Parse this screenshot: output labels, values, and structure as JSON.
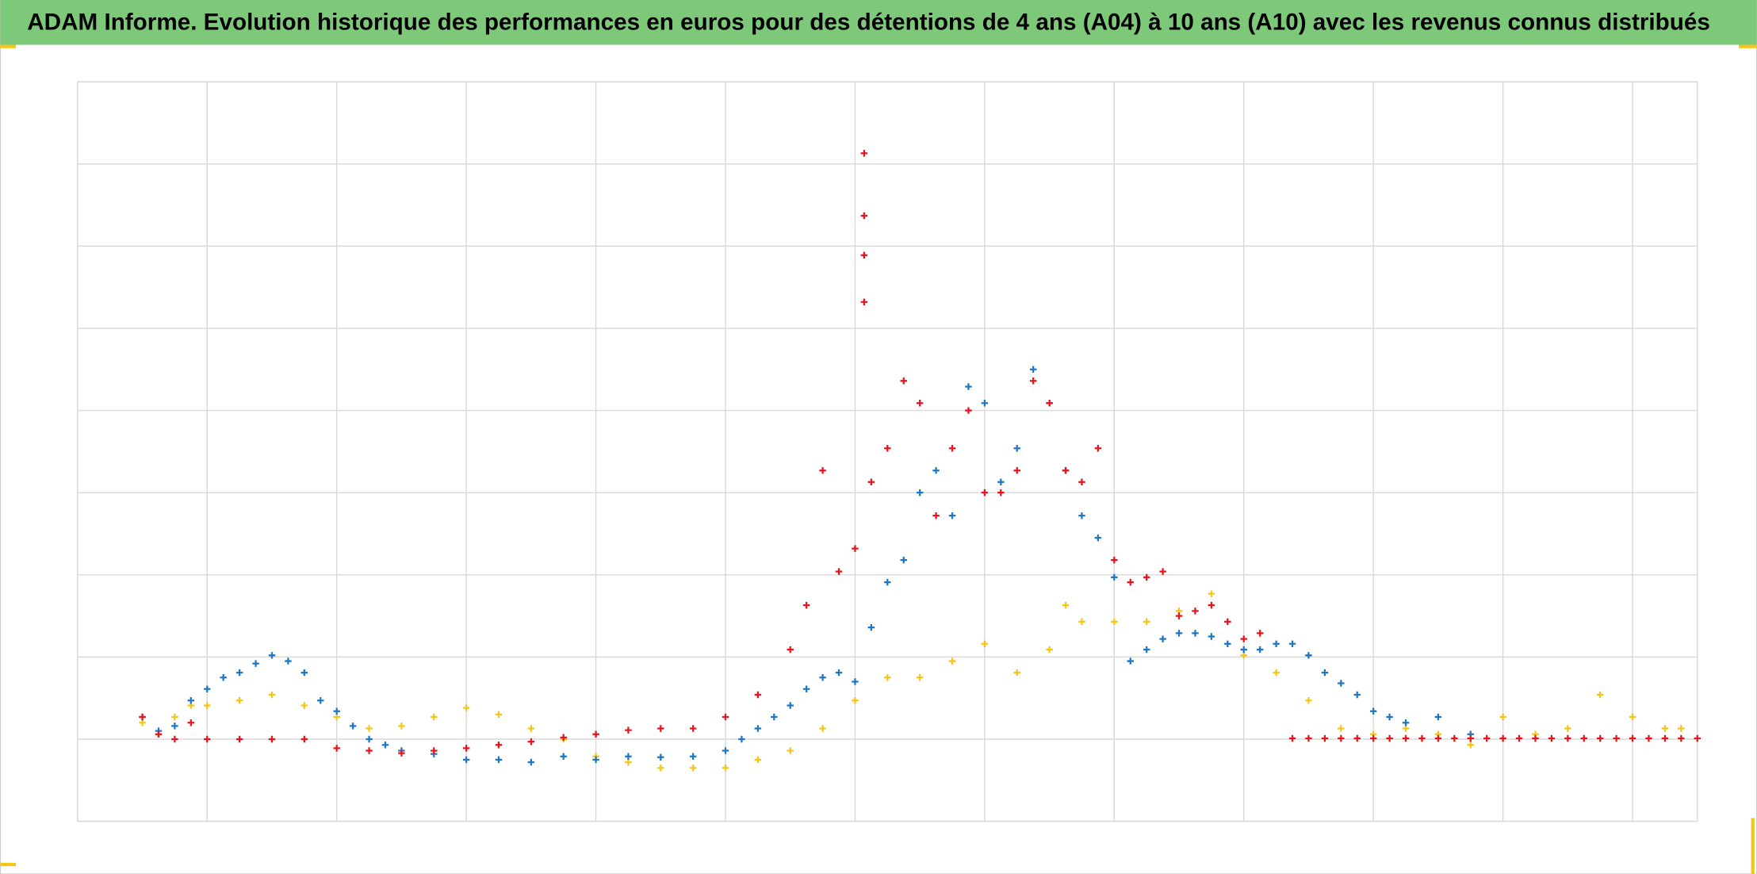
{
  "chart_data": {
    "type": "scatter",
    "title": "ADAM Informe. Evolution historique des performances en euros pour des détentions de 4 ans (A04) à 10 ans (A10) avec les revenus connus distribués",
    "xlim": [
      0,
      12.5
    ],
    "xticks": [
      0,
      1,
      2,
      3,
      4,
      5,
      6,
      7,
      8,
      9,
      10,
      11,
      12
    ],
    "ylim": [
      0,
      9
    ],
    "yticks": [
      0,
      1,
      2,
      3,
      4,
      5,
      6,
      7,
      8,
      9
    ],
    "grid": true,
    "series": [
      {
        "color": "#f5c518",
        "x": [
          0.5,
          0.625,
          0.75,
          0.875,
          1.0,
          1.25,
          1.5,
          1.75,
          2.0,
          2.25,
          2.5,
          2.75,
          3.0,
          3.25,
          3.5,
          3.75,
          4.0,
          4.25,
          4.5,
          4.75,
          5.0,
          5.25,
          5.5,
          5.75,
          6.0,
          6.25,
          6.5,
          6.75,
          7.0,
          7.25,
          7.5,
          7.625,
          7.75,
          8.0,
          8.25,
          8.5,
          8.75,
          9.0,
          9.25,
          9.5,
          9.75,
          10.0,
          10.25,
          10.5,
          10.75,
          11.0,
          11.25,
          11.5,
          11.75,
          12.0,
          12.25,
          12.375
        ],
        "values": [
          1.2,
          1.06,
          1.27,
          1.41,
          1.41,
          1.47,
          1.54,
          1.41,
          1.27,
          1.13,
          1.16,
          1.27,
          1.38,
          1.3,
          1.13,
          1.0,
          0.79,
          0.72,
          0.65,
          0.65,
          0.65,
          0.75,
          0.86,
          1.13,
          1.47,
          1.75,
          1.75,
          1.95,
          2.16,
          1.81,
          2.09,
          2.63,
          2.43,
          2.43,
          2.43,
          2.56,
          2.77,
          2.02,
          1.81,
          1.47,
          1.13,
          1.06,
          1.13,
          1.06,
          0.93,
          1.27,
          1.06,
          1.13,
          1.54,
          1.27,
          1.13,
          1.13
        ]
      },
      {
        "color": "#1f77c4",
        "x": [
          0.5,
          0.625,
          0.75,
          0.875,
          1.0,
          1.125,
          1.25,
          1.375,
          1.5,
          1.625,
          1.75,
          1.875,
          2.0,
          2.125,
          2.25,
          2.375,
          2.5,
          2.75,
          3.0,
          3.25,
          3.5,
          3.75,
          4.0,
          4.25,
          4.5,
          4.75,
          5.0,
          5.125,
          5.25,
          5.375,
          5.5,
          5.625,
          5.75,
          5.875,
          6.0,
          6.125,
          6.25,
          6.375,
          6.5,
          6.625,
          6.75,
          6.875,
          7.0,
          7.125,
          7.25,
          7.375,
          7.5,
          7.625,
          7.75,
          7.875,
          8.0,
          8.125,
          8.25,
          8.375,
          8.5,
          8.625,
          8.75,
          8.875,
          9.0,
          9.125,
          9.25,
          9.375,
          9.5,
          9.625,
          9.75,
          9.875,
          10.0,
          10.125,
          10.25,
          10.5,
          10.75
        ],
        "values": [
          1.27,
          1.1,
          1.16,
          1.47,
          1.61,
          1.75,
          1.81,
          1.92,
          2.02,
          1.95,
          1.81,
          1.47,
          1.34,
          1.16,
          1.0,
          0.93,
          0.86,
          0.82,
          0.75,
          0.75,
          0.72,
          0.79,
          0.75,
          0.79,
          0.78,
          0.79,
          0.86,
          1.0,
          1.13,
          1.27,
          1.41,
          1.61,
          1.75,
          1.81,
          1.7,
          2.36,
          2.91,
          3.18,
          4.0,
          4.27,
          3.72,
          5.29,
          5.09,
          4.13,
          4.54,
          5.5,
          5.09,
          4.27,
          3.72,
          3.45,
          2.97,
          1.95,
          2.09,
          2.22,
          2.29,
          2.29,
          2.25,
          2.16,
          2.09,
          2.09,
          2.16,
          2.16,
          2.02,
          1.81,
          1.68,
          1.54,
          1.34,
          1.27,
          1.2,
          1.27,
          1.06
        ]
      },
      {
        "color": "#e8141c",
        "x": [
          0.5,
          0.625,
          0.75,
          0.875,
          1.0,
          1.25,
          1.5,
          1.75,
          2.0,
          2.25,
          2.5,
          2.75,
          3.0,
          3.25,
          3.5,
          3.75,
          4.0,
          4.25,
          4.5,
          4.75,
          5.0,
          5.25,
          5.5,
          5.625,
          5.75,
          5.875,
          6.0,
          6.07,
          6.07,
          6.07,
          6.07,
          6.125,
          6.25,
          6.375,
          6.5,
          6.625,
          6.75,
          6.875,
          7.0,
          7.125,
          7.25,
          7.375,
          7.5,
          7.625,
          7.75,
          7.875,
          8.0,
          8.125,
          8.25,
          8.375,
          8.5,
          8.625,
          8.75,
          8.875,
          9.0,
          9.125,
          9.375,
          9.5,
          9.625,
          9.75,
          9.875,
          10.0,
          10.125,
          10.25,
          10.375,
          10.5,
          10.625,
          10.75,
          10.875,
          11.0,
          11.125,
          11.25,
          11.375,
          11.5,
          11.625,
          11.75,
          11.875,
          12.0,
          12.125,
          12.25,
          12.375,
          12.5
        ],
        "values": [
          1.27,
          1.06,
          1.0,
          1.2,
          1.0,
          1.0,
          1.0,
          1.0,
          0.89,
          0.86,
          0.83,
          0.86,
          0.89,
          0.93,
          0.97,
          1.02,
          1.06,
          1.11,
          1.13,
          1.13,
          1.27,
          1.54,
          2.09,
          2.63,
          4.27,
          3.04,
          3.32,
          8.13,
          7.37,
          6.89,
          6.32,
          4.13,
          4.54,
          5.36,
          5.09,
          3.72,
          4.54,
          5.0,
          4.0,
          4.0,
          4.27,
          5.36,
          5.09,
          4.27,
          4.13,
          4.54,
          3.18,
          2.91,
          2.97,
          3.04,
          2.5,
          2.56,
          2.63,
          2.43,
          2.22,
          2.29,
          1.01,
          1.01,
          1.01,
          1.01,
          1.01,
          1.01,
          1.01,
          1.01,
          1.01,
          1.01,
          1.01,
          1.01,
          1.01,
          1.01,
          1.01,
          1.01,
          1.01,
          1.01,
          1.01,
          1.01,
          1.01,
          1.01,
          1.01,
          1.01,
          1.01,
          1.01
        ]
      }
    ]
  }
}
